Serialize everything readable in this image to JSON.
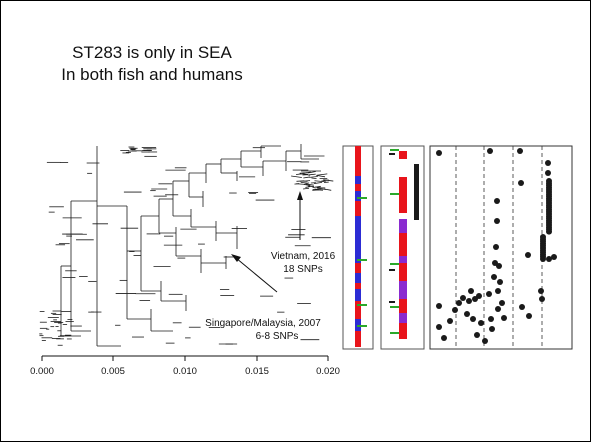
{
  "slide": {
    "title_line1": "ST283 is only in SEA",
    "title_line2": "In both fish and humans"
  },
  "annotations": [
    {
      "line1": "Vietnam, 2016",
      "line2": "18 SNPs"
    },
    {
      "line1": "Singapore/Malaysia, 2007",
      "line2": "6-8 SNPs"
    }
  ],
  "scale_axis": {
    "ticks": [
      "0.000",
      "0.005",
      "0.010",
      "0.015",
      "0.020"
    ]
  },
  "colors": {
    "red": "#e8141b",
    "blue": "#2c2cd4",
    "purple": "#8a2bd0",
    "green": "#2aa82a",
    "dark": "#1a1a1a"
  }
}
